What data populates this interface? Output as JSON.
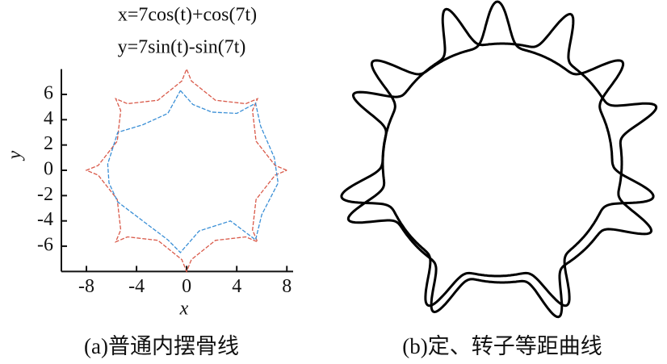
{
  "chart_data": {
    "type": "line",
    "title": "x=7cos(t)+cos(7t)",
    "subtitle": "y=7sin(t)-sin(7t)",
    "xlabel": "x",
    "ylabel": "y",
    "caption": "(a)普通内摆骨线",
    "xlim": [
      -10,
      8.5
    ],
    "ylim": [
      -8,
      8
    ],
    "xticks": [
      -8,
      -4,
      0,
      4,
      8
    ],
    "yticks": [
      -6,
      -4,
      -2,
      0,
      2,
      4,
      6
    ],
    "series": [
      {
        "color": "#d95a4a",
        "x": [
          8,
          7.06,
          5.54,
          5.26,
          5.66,
          4.72,
          2.3,
          0.38,
          0,
          -0.38,
          -2.3,
          -4.72,
          -5.66,
          -5.26,
          -5.54,
          -7.06,
          -8,
          -7.06,
          -5.54,
          -5.26,
          -5.66,
          -4.72,
          -2.3,
          -0.38,
          0,
          0.38,
          2.3,
          4.72,
          5.66,
          5.26,
          5.54,
          7.06,
          8
        ],
        "values": [
          0,
          0.38,
          2.3,
          4.72,
          5.66,
          5.26,
          5.54,
          7.06,
          8,
          7.06,
          5.54,
          5.26,
          5.66,
          4.72,
          2.3,
          0.38,
          0,
          -0.38,
          -2.3,
          -4.72,
          -5.66,
          -5.26,
          -5.54,
          -7.06,
          -8,
          -7.06,
          -5.54,
          -5.26,
          -5.66,
          -4.72,
          -2.3,
          -0.38,
          0
        ]
      },
      {
        "color": "#3a8fd6",
        "x": [
          -0.5,
          0.5,
          2,
          4,
          5.5,
          5.9,
          7,
          7.3,
          6,
          5.5,
          3.5,
          1,
          -0.5,
          -1.5,
          -3.5,
          -5.5,
          -6.2,
          -6.3,
          -5.5,
          -3.5,
          -1.5,
          -0.5
        ],
        "values": [
          6.3,
          5.2,
          4.6,
          4.5,
          5.3,
          3.5,
          1,
          -1,
          -3.5,
          -5.5,
          -4,
          -4.8,
          -6.5,
          -5.5,
          -4,
          -2.5,
          -1,
          0.5,
          3,
          3.6,
          4.5,
          6.3
        ]
      }
    ]
  },
  "diagram": {
    "caption": "(b)定、转子等距曲线"
  }
}
